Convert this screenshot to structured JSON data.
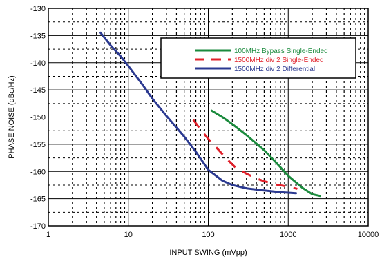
{
  "chart_data": {
    "type": "line",
    "xlabel": "INPUT SWING (mVpp)",
    "ylabel": "PHASE NOISE (dBc/Hz)",
    "xscale": "log",
    "xlim": [
      1,
      10000
    ],
    "ylim": [
      -170,
      -130
    ],
    "grid": "on",
    "legend_position": "top-right",
    "x_ticks": [
      {
        "value": 1,
        "label": "1"
      },
      {
        "value": 10,
        "label": "10"
      },
      {
        "value": 100,
        "label": "100"
      },
      {
        "value": 1000,
        "label": "1000"
      },
      {
        "value": 10000,
        "label": "10000"
      }
    ],
    "y_ticks": [
      {
        "value": -130,
        "label": "-130"
      },
      {
        "value": -135,
        "label": "-135"
      },
      {
        "value": -140,
        "label": "-140"
      },
      {
        "value": -145,
        "label": "-145"
      },
      {
        "value": -150,
        "label": "-150"
      },
      {
        "value": -155,
        "label": "-155"
      },
      {
        "value": -160,
        "label": "-160"
      },
      {
        "value": -165,
        "label": "-165"
      },
      {
        "value": -170,
        "label": "-170"
      }
    ],
    "series": [
      {
        "name": "100MHz Bypass Single-Ended",
        "color": "#1a8a3c",
        "dash": "solid",
        "x": [
          110,
          150,
          200,
          300,
          500,
          700,
          1000,
          1500,
          2000,
          2500
        ],
        "y": [
          -148.8,
          -150.0,
          -151.3,
          -153.3,
          -156.1,
          -158.3,
          -160.8,
          -163.0,
          -164.2,
          -164.5
        ]
      },
      {
        "name": "1500MHz div 2 Single-Ended",
        "color": "#e0202a",
        "dash": "dashed",
        "x": [
          65,
          80,
          100,
          130,
          170,
          220,
          300,
          400,
          500,
          700,
          1000,
          1300
        ],
        "y": [
          -150.5,
          -152.3,
          -154.0,
          -155.8,
          -157.7,
          -159.3,
          -160.4,
          -161.3,
          -161.8,
          -162.4,
          -162.8,
          -163.2
        ]
      },
      {
        "name": "1500MHz div 2 Differential",
        "color": "#2b3990",
        "dash": "solid",
        "x": [
          4.5,
          6,
          8,
          10,
          15,
          20,
          30,
          50,
          70,
          100,
          150,
          200,
          300,
          500,
          800,
          1250
        ],
        "y": [
          -134.5,
          -136.8,
          -138.8,
          -140.6,
          -144.0,
          -146.6,
          -149.8,
          -153.6,
          -156.4,
          -159.7,
          -161.7,
          -162.5,
          -163.1,
          -163.5,
          -163.8,
          -164.0
        ]
      }
    ]
  }
}
